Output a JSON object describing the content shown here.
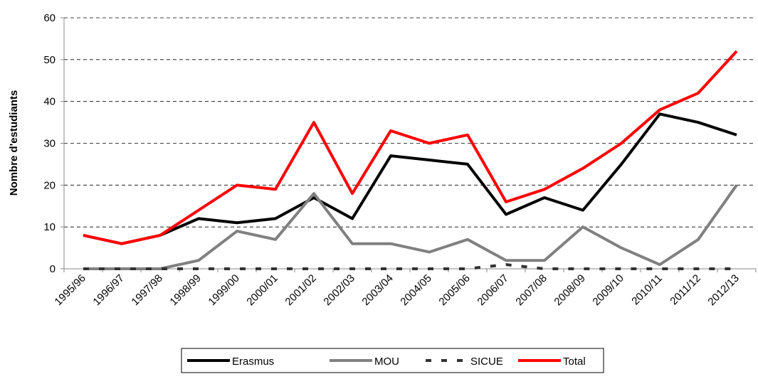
{
  "chart_data": {
    "type": "line",
    "y_label": "Nombre d'estudiants",
    "categories": [
      "1995/96",
      "1996/97",
      "1997/98",
      "1998/99",
      "1999/00",
      "2000/01",
      "2001/02",
      "2002/03",
      "2003/04",
      "2004/05",
      "2005/06",
      "2006/07",
      "2007/08",
      "2008/09",
      "2009/10",
      "2010/11",
      "2011/12",
      "2012/13"
    ],
    "series": [
      {
        "name": "Erasmus",
        "color": "#000000",
        "dash": false,
        "values": [
          8,
          6,
          8,
          12,
          11,
          12,
          17,
          12,
          27,
          26,
          25,
          13,
          17,
          14,
          25,
          37,
          35,
          32
        ]
      },
      {
        "name": "MOU",
        "color": "#808080",
        "dash": false,
        "values": [
          0,
          0,
          0,
          2,
          9,
          7,
          18,
          6,
          6,
          4,
          7,
          2,
          2,
          10,
          5,
          1,
          7,
          20
        ]
      },
      {
        "name": "SICUE",
        "color": "#333333",
        "dash": true,
        "values": [
          0,
          0,
          0,
          0,
          0,
          0,
          0,
          0,
          0,
          0,
          0,
          1,
          0,
          0,
          0,
          0,
          0,
          0
        ]
      },
      {
        "name": "Total",
        "color": "#ff0000",
        "dash": false,
        "values": [
          8,
          6,
          8,
          14,
          20,
          19,
          35,
          18,
          33,
          30,
          32,
          16,
          19,
          24,
          30,
          38,
          42,
          52
        ]
      }
    ],
    "ylim": [
      0,
      60
    ],
    "yticks": [
      0,
      10,
      20,
      30,
      40,
      50,
      60
    ],
    "grid": true,
    "legend": "bottom"
  }
}
